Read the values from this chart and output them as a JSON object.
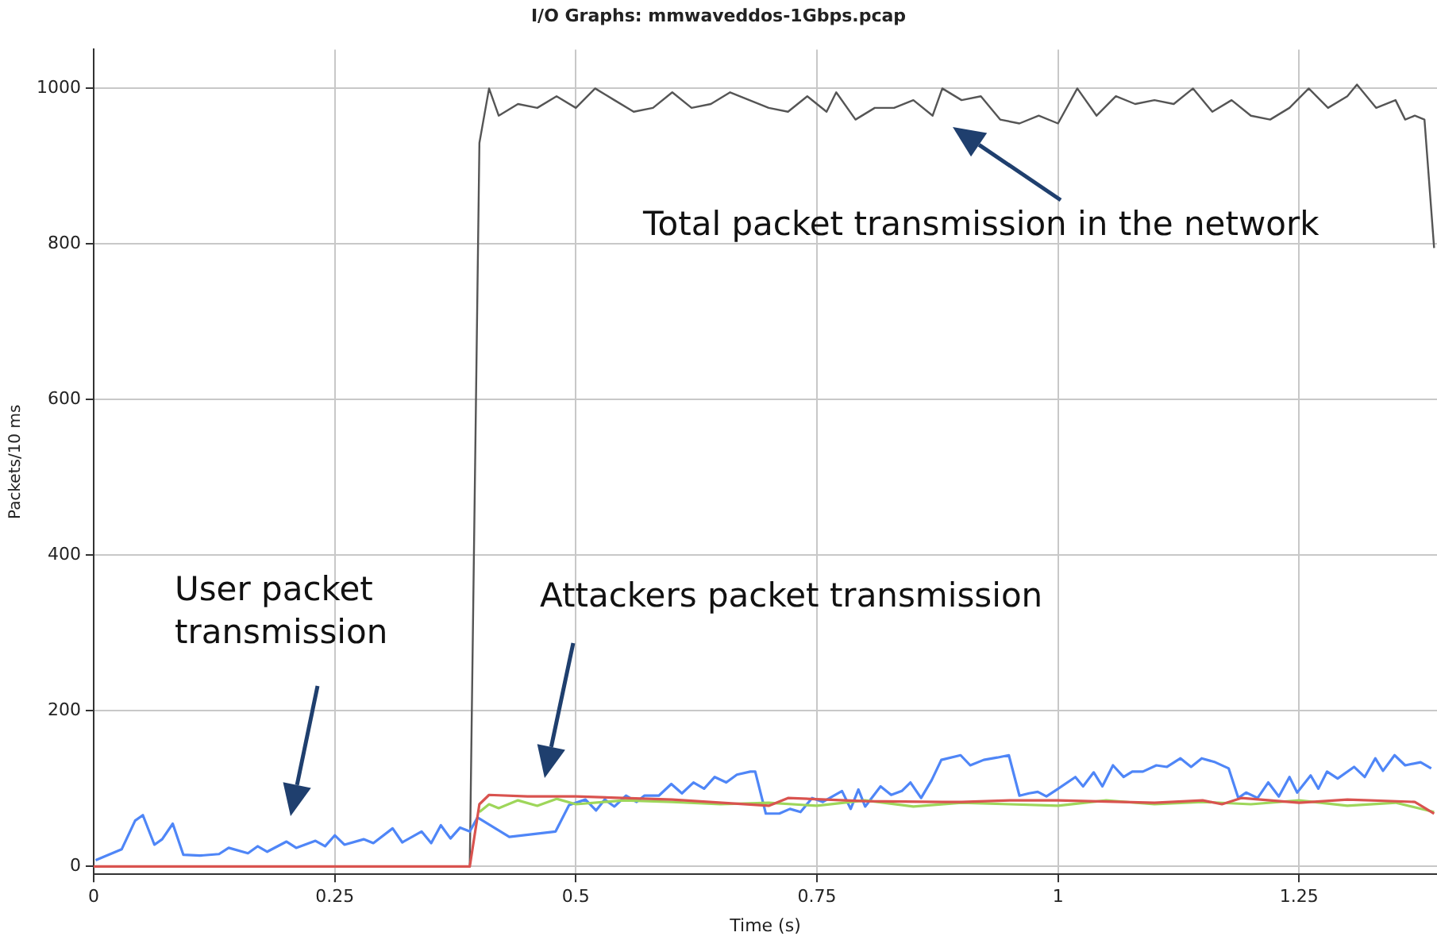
{
  "chart_data": {
    "type": "line",
    "title": "I/O Graphs: mmwaveddos-1Gbps.pcap",
    "xlabel": "Time (s)",
    "ylabel": "Packets/10 ms",
    "xlim": [
      0,
      1.393
    ],
    "xticks": [
      0,
      0.25,
      0.5,
      0.75,
      1,
      1.25
    ],
    "ylim": [
      -10,
      1050
    ],
    "yticks": [
      0,
      200,
      400,
      600,
      800,
      1000
    ],
    "grid": true,
    "legend": false,
    "marker": "none",
    "line_style": "solid",
    "annotations": [
      "Total packet transmission in the network",
      "User packet\ntransmission",
      "Attackers packet transmission"
    ],
    "series": [
      {
        "color": "#555555",
        "x": [
          0,
          0.39,
          0.4,
          0.41,
          0.42,
          0.44,
          0.46,
          0.48,
          0.5,
          0.52,
          0.54,
          0.56,
          0.58,
          0.6,
          0.62,
          0.64,
          0.66,
          0.68,
          0.7,
          0.72,
          0.74,
          0.76,
          0.77,
          0.79,
          0.81,
          0.83,
          0.85,
          0.87,
          0.88,
          0.9,
          0.92,
          0.94,
          0.96,
          0.98,
          1,
          1.02,
          1.04,
          1.06,
          1.08,
          1.1,
          1.12,
          1.14,
          1.16,
          1.18,
          1.2,
          1.22,
          1.24,
          1.26,
          1.28,
          1.3,
          1.31,
          1.33,
          1.35,
          1.36,
          1.37,
          1.38,
          1.39
        ],
        "values": [
          0,
          0,
          930,
          1000,
          965,
          980,
          975,
          990,
          975,
          1000,
          985,
          970,
          975,
          995,
          975,
          980,
          995,
          985,
          975,
          970,
          990,
          970,
          995,
          960,
          975,
          975,
          985,
          965,
          1000,
          985,
          990,
          960,
          955,
          965,
          955,
          1000,
          965,
          990,
          980,
          985,
          980,
          1000,
          970,
          985,
          965,
          960,
          975,
          1000,
          975,
          990,
          1005,
          975,
          985,
          960,
          965,
          960,
          795
        ]
      },
      {
        "color": "#4f86f7",
        "x": [
          0.002,
          0.029,
          0.043,
          0.051,
          0.063,
          0.071,
          0.082,
          0.093,
          0.11,
          0.13,
          0.14,
          0.16,
          0.17,
          0.18,
          0.2,
          0.21,
          0.23,
          0.24,
          0.25,
          0.26,
          0.28,
          0.29,
          0.31,
          0.32,
          0.34,
          0.35,
          0.36,
          0.37,
          0.38,
          0.39,
          0.398,
          0.431,
          0.479,
          0.493,
          0.51,
          0.521,
          0.53,
          0.54,
          0.552,
          0.563,
          0.571,
          0.586,
          0.599,
          0.61,
          0.622,
          0.633,
          0.644,
          0.656,
          0.667,
          0.681,
          0.686,
          0.697,
          0.711,
          0.722,
          0.733,
          0.745,
          0.756,
          0.776,
          0.785,
          0.793,
          0.8,
          0.816,
          0.827,
          0.838,
          0.847,
          0.858,
          0.869,
          0.879,
          0.899,
          0.909,
          0.923,
          0.937,
          0.949,
          0.96,
          0.97,
          0.979,
          0.988,
          0.999,
          1.018,
          1.026,
          1.037,
          1.046,
          1.057,
          1.068,
          1.077,
          1.088,
          1.102,
          1.113,
          1.127,
          1.138,
          1.149,
          1.163,
          1.177,
          1.187,
          1.195,
          1.207,
          1.218,
          1.229,
          1.24,
          1.248,
          1.262,
          1.27,
          1.279,
          1.29,
          1.307,
          1.318,
          1.329,
          1.337,
          1.349,
          1.36,
          1.376,
          1.387
        ],
        "values": [
          8,
          22,
          59,
          66,
          28,
          35,
          55,
          15,
          14,
          16,
          24,
          17,
          26,
          19,
          32,
          24,
          33,
          26,
          40,
          28,
          35,
          30,
          49,
          31,
          45,
          30,
          53,
          36,
          50,
          45,
          63,
          38,
          45,
          79,
          86,
          72,
          86,
          77,
          91,
          83,
          91,
          91,
          106,
          94,
          108,
          100,
          115,
          108,
          118,
          122,
          122,
          68,
          68,
          74,
          70,
          88,
          83,
          97,
          74,
          99,
          77,
          103,
          92,
          97,
          108,
          88,
          111,
          137,
          143,
          130,
          137,
          140,
          143,
          91,
          94,
          96,
          90,
          99,
          115,
          103,
          121,
          103,
          130,
          115,
          122,
          122,
          130,
          128,
          139,
          128,
          139,
          134,
          126,
          88,
          95,
          88,
          108,
          90,
          115,
          95,
          117,
          100,
          122,
          113,
          128,
          115,
          139,
          123,
          143,
          130,
          134,
          126
        ]
      },
      {
        "color": "#9ed65a",
        "x": [
          0.4,
          0.41,
          0.42,
          0.44,
          0.46,
          0.48,
          0.5,
          0.55,
          0.6,
          0.65,
          0.7,
          0.75,
          0.8,
          0.85,
          0.9,
          0.95,
          1,
          1.05,
          1.1,
          1.15,
          1.2,
          1.25,
          1.3,
          1.35,
          1.39
        ],
        "values": [
          70,
          80,
          75,
          85,
          78,
          87,
          80,
          85,
          83,
          80,
          82,
          78,
          85,
          77,
          82,
          80,
          78,
          85,
          80,
          83,
          80,
          85,
          78,
          82,
          70
        ]
      },
      {
        "color": "#d9534f",
        "x": [
          0,
          0.39,
          0.4,
          0.41,
          0.45,
          0.5,
          0.6,
          0.7,
          0.72,
          0.8,
          0.88,
          0.9,
          0.95,
          1,
          1.1,
          1.15,
          1.17,
          1.19,
          1.25,
          1.3,
          1.37,
          1.39
        ],
        "values": [
          0,
          0,
          80,
          92,
          90,
          90,
          86,
          78,
          88,
          84,
          83,
          83,
          85,
          85,
          82,
          85,
          80,
          88,
          82,
          86,
          83,
          68
        ]
      }
    ]
  }
}
